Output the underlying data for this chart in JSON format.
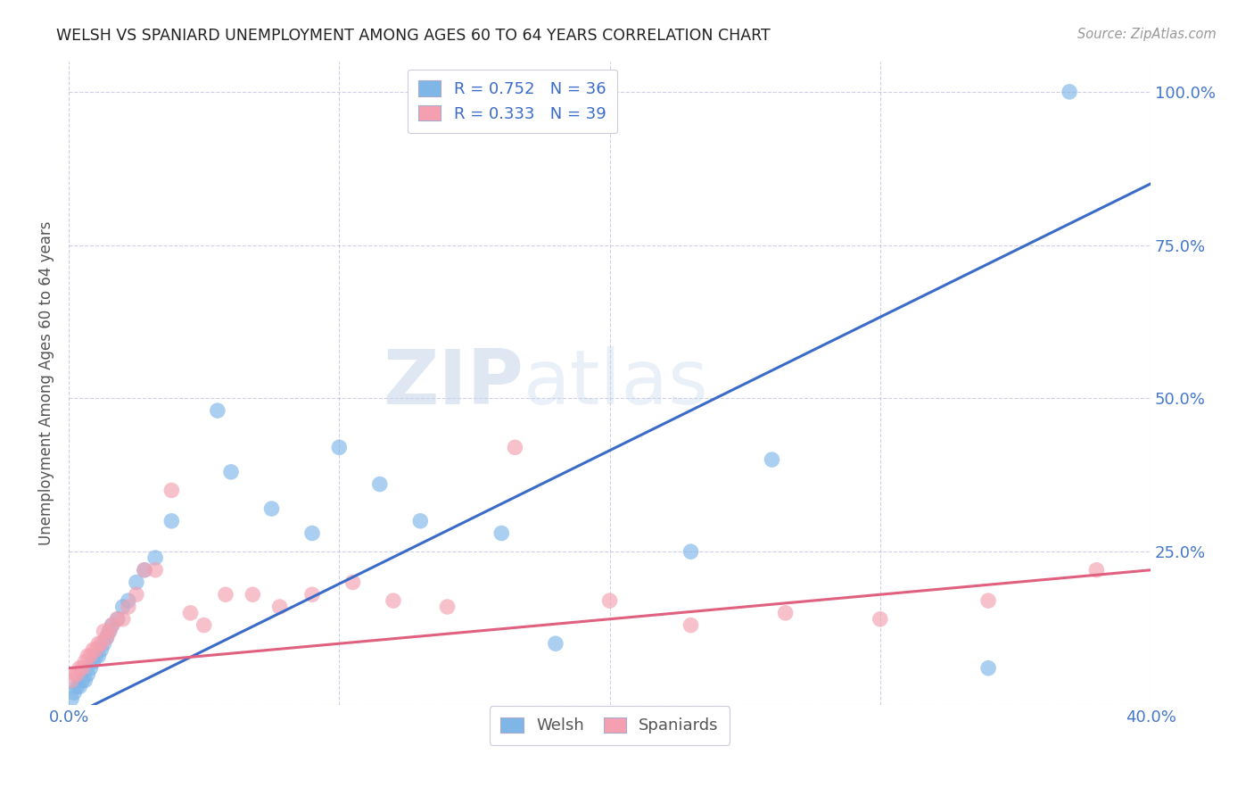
{
  "title": "WELSH VS SPANIARD UNEMPLOYMENT AMONG AGES 60 TO 64 YEARS CORRELATION CHART",
  "source": "Source: ZipAtlas.com",
  "ylabel": "Unemployment Among Ages 60 to 64 years",
  "xlabel_welsh": "Welsh",
  "xlabel_spaniards": "Spaniards",
  "xlim": [
    0.0,
    0.4
  ],
  "ylim": [
    0.0,
    1.05
  ],
  "x_ticks": [
    0.0,
    0.1,
    0.2,
    0.3,
    0.4
  ],
  "x_tick_labels": [
    "0.0%",
    "",
    "",
    "",
    "40.0%"
  ],
  "y_ticks": [
    0.0,
    0.25,
    0.5,
    0.75,
    1.0
  ],
  "y_tick_labels": [
    "",
    "25.0%",
    "50.0%",
    "75.0%",
    "100.0%"
  ],
  "welsh_R": 0.752,
  "welsh_N": 36,
  "spaniard_R": 0.333,
  "spaniard_N": 39,
  "welsh_color": "#7EB6E8",
  "spaniard_color": "#F4A0B0",
  "welsh_line_color": "#3A6BC8",
  "spaniard_line_color": "#E06080",
  "watermark_zip": "ZIP",
  "watermark_atlas": "atlas",
  "background_color": "#FFFFFF",
  "welsh_x": [
    0.001,
    0.002,
    0.003,
    0.004,
    0.005,
    0.006,
    0.007,
    0.008,
    0.009,
    0.01,
    0.011,
    0.012,
    0.013,
    0.014,
    0.015,
    0.016,
    0.018,
    0.02,
    0.022,
    0.025,
    0.028,
    0.032,
    0.038,
    0.055,
    0.06,
    0.075,
    0.09,
    0.1,
    0.115,
    0.13,
    0.16,
    0.18,
    0.23,
    0.26,
    0.34,
    0.37
  ],
  "welsh_y": [
    0.01,
    0.02,
    0.03,
    0.03,
    0.04,
    0.04,
    0.05,
    0.06,
    0.07,
    0.08,
    0.08,
    0.09,
    0.1,
    0.11,
    0.12,
    0.13,
    0.14,
    0.16,
    0.17,
    0.2,
    0.22,
    0.24,
    0.3,
    0.48,
    0.38,
    0.32,
    0.28,
    0.42,
    0.36,
    0.3,
    0.28,
    0.1,
    0.25,
    0.4,
    0.06,
    1.0
  ],
  "spaniard_x": [
    0.001,
    0.002,
    0.003,
    0.004,
    0.005,
    0.006,
    0.007,
    0.008,
    0.009,
    0.01,
    0.011,
    0.012,
    0.013,
    0.014,
    0.015,
    0.016,
    0.018,
    0.02,
    0.022,
    0.025,
    0.028,
    0.032,
    0.038,
    0.045,
    0.05,
    0.058,
    0.068,
    0.078,
    0.09,
    0.105,
    0.12,
    0.14,
    0.165,
    0.2,
    0.23,
    0.265,
    0.3,
    0.34,
    0.38
  ],
  "spaniard_y": [
    0.04,
    0.05,
    0.05,
    0.06,
    0.06,
    0.07,
    0.08,
    0.08,
    0.09,
    0.09,
    0.1,
    0.1,
    0.12,
    0.11,
    0.12,
    0.13,
    0.14,
    0.14,
    0.16,
    0.18,
    0.22,
    0.22,
    0.35,
    0.15,
    0.13,
    0.18,
    0.18,
    0.16,
    0.18,
    0.2,
    0.17,
    0.16,
    0.42,
    0.17,
    0.13,
    0.15,
    0.14,
    0.17,
    0.22
  ],
  "welsh_line_x0": 0.0,
  "welsh_line_y0": -0.02,
  "welsh_line_x1": 0.4,
  "welsh_line_y1": 0.85,
  "spaniard_line_x0": 0.0,
  "spaniard_line_y0": 0.06,
  "spaniard_line_x1": 0.4,
  "spaniard_line_y1": 0.22
}
